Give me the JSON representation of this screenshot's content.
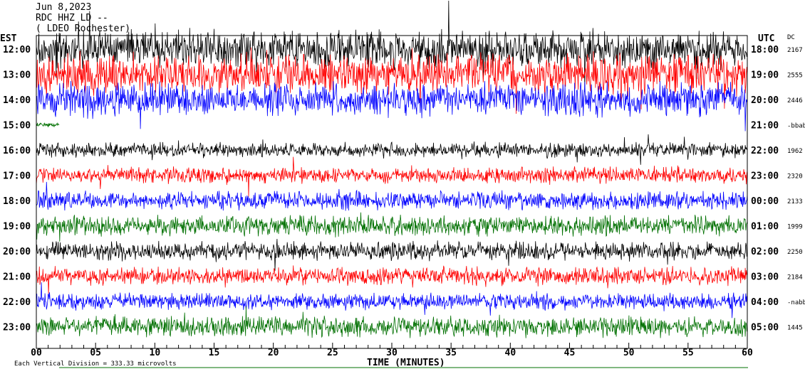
{
  "header": {
    "date": "Jun 8,2023",
    "station": "RDC HHZ LD --",
    "location": "( LDEO Rochester)"
  },
  "left_axis_title": "EST",
  "right_axis_title": "UTC",
  "dc_title": "DC",
  "footer": {
    "scale_text": "Each Vertical Division = 333.33 microvolts",
    "xlabel": "TIME (MINUTES)"
  },
  "chart_data": {
    "type": "line",
    "title": "Jun 8,2023 RDC HHZ LD -- ( LDEO Rochester)",
    "xlabel": "TIME (MINUTES)",
    "xlim": [
      0,
      60
    ],
    "x_ticks": [
      "00",
      "05",
      "10",
      "15",
      "20",
      "25",
      "30",
      "35",
      "40",
      "45",
      "50",
      "55",
      "60"
    ],
    "colors": [
      "#000000",
      "#ff0000",
      "#0000ff",
      "#007000"
    ],
    "traces": [
      {
        "est": "12:00",
        "utc": "18:00",
        "dc": "2167",
        "color": "#000000",
        "amp": 1.0
      },
      {
        "est": "13:00",
        "utc": "19:00",
        "dc": "2555",
        "color": "#ff0000",
        "amp": 1.1
      },
      {
        "est": "14:00",
        "utc": "20:00",
        "dc": "2446",
        "color": "#0000ff",
        "amp": 0.9
      },
      {
        "est": "15:00",
        "utc": "21:00",
        "dc": "-bbabbb",
        "color": "#007000",
        "amp": 0.1
      },
      {
        "est": "16:00",
        "utc": "22:00",
        "dc": "1962",
        "color": "#000000",
        "amp": 0.4
      },
      {
        "est": "17:00",
        "utc": "23:00",
        "dc": "2320",
        "color": "#ff0000",
        "amp": 0.45
      },
      {
        "est": "18:00",
        "utc": "00:00",
        "dc": "2133",
        "color": "#0000ff",
        "amp": 0.5
      },
      {
        "est": "19:00",
        "utc": "01:00",
        "dc": "1999",
        "color": "#007000",
        "amp": 0.55
      },
      {
        "est": "20:00",
        "utc": "02:00",
        "dc": "2250",
        "color": "#000000",
        "amp": 0.5
      },
      {
        "est": "21:00",
        "utc": "03:00",
        "dc": "2184",
        "color": "#ff0000",
        "amp": 0.5
      },
      {
        "est": "22:00",
        "utc": "04:00",
        "dc": "-nabbbd",
        "color": "#0000ff",
        "amp": 0.45
      },
      {
        "est": "23:00",
        "utc": "05:00",
        "dc": "1445",
        "color": "#007000",
        "amp": 0.55
      }
    ]
  }
}
